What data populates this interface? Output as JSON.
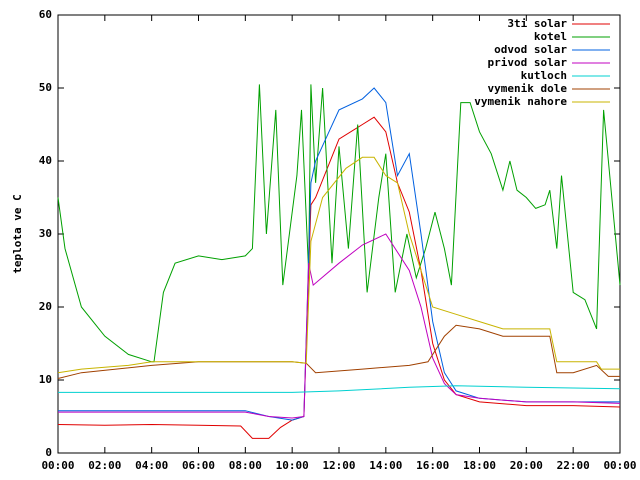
{
  "chart_data": {
    "type": "line",
    "ylabel": "teplota ve C",
    "xlim": [
      0,
      24
    ],
    "ylim": [
      0,
      60
    ],
    "yticks": [
      0,
      10,
      20,
      30,
      40,
      50,
      60
    ],
    "xticks": [
      {
        "value": 0,
        "label": "00:00"
      },
      {
        "value": 2,
        "label": "02:00"
      },
      {
        "value": 4,
        "label": "04:00"
      },
      {
        "value": 6,
        "label": "06:00"
      },
      {
        "value": 8,
        "label": "08:00"
      },
      {
        "value": 10,
        "label": "10:00"
      },
      {
        "value": 12,
        "label": "12:00"
      },
      {
        "value": 14,
        "label": "14:00"
      },
      {
        "value": 16,
        "label": "16:00"
      },
      {
        "value": 18,
        "label": "18:00"
      },
      {
        "value": 20,
        "label": "20:00"
      },
      {
        "value": 22,
        "label": "22:00"
      },
      {
        "value": 24,
        "label": "00:00"
      }
    ],
    "grid": false,
    "legend": "top-right",
    "series": [
      {
        "name": "3ti solar",
        "color": "#e00000",
        "x": [
          0,
          2,
          4,
          6,
          7.8,
          8.3,
          9,
          9.5,
          10,
          10.5,
          10.8,
          11,
          12,
          13,
          13.5,
          14,
          14.5,
          15,
          15.5,
          16,
          16.5,
          17,
          18,
          20,
          22,
          24
        ],
        "values": [
          3.9,
          3.8,
          3.9,
          3.8,
          3.7,
          2,
          2,
          3.5,
          4.5,
          5,
          34,
          35,
          43,
          45,
          46,
          44,
          37,
          33,
          25,
          15,
          10,
          8,
          7,
          6.5,
          6.5,
          6.3
        ]
      },
      {
        "name": "kotel",
        "color": "#00a000",
        "x": [
          0,
          0.3,
          1,
          2,
          3,
          4,
          4.1,
          4.5,
          5,
          6,
          7,
          8,
          8.3,
          8.6,
          8.9,
          9.3,
          9.6,
          9.8,
          10.2,
          10.4,
          10.7,
          10.8,
          11,
          11.3,
          11.7,
          12,
          12.4,
          12.8,
          13.2,
          13.7,
          14,
          14.4,
          14.9,
          15.3,
          15.7,
          16.1,
          16.5,
          16.8,
          17.2,
          17.6,
          18,
          18.5,
          19,
          19.3,
          19.6,
          20,
          20.4,
          20.8,
          21,
          21.3,
          21.5,
          22,
          22.5,
          23,
          23.3,
          24
        ],
        "values": [
          35,
          28,
          20,
          16,
          13.5,
          12.5,
          12.5,
          22,
          26,
          27,
          26.5,
          27,
          28,
          50.5,
          30,
          47,
          23,
          28,
          38,
          47,
          25,
          50.5,
          37,
          50,
          26,
          42,
          28,
          45,
          22,
          35,
          41,
          22,
          30,
          24,
          28,
          33,
          28,
          23,
          48,
          48,
          44,
          41,
          36,
          40,
          36,
          35,
          33.5,
          34,
          36,
          28,
          38,
          22,
          21,
          17,
          47,
          23
        ]
      },
      {
        "name": "odvod solar",
        "color": "#0060e0",
        "x": [
          0,
          4,
          8,
          9,
          10,
          10.5,
          10.8,
          11,
          12,
          13,
          13.5,
          14,
          14.5,
          15,
          15.5,
          16,
          16.5,
          17,
          18,
          20,
          24
        ],
        "values": [
          5.8,
          5.8,
          5.8,
          5,
          4.5,
          5,
          37,
          40,
          47,
          48.5,
          50,
          48,
          38,
          41,
          30,
          18,
          11,
          8.5,
          7.5,
          7,
          7
        ]
      },
      {
        "name": "privod solar",
        "color": "#c000c0",
        "x": [
          0,
          4,
          8,
          9,
          10,
          10.5,
          10.7,
          10.9,
          12,
          13,
          14,
          15,
          15.5,
          16,
          16.5,
          17,
          18,
          20,
          22,
          24
        ],
        "values": [
          5.6,
          5.6,
          5.6,
          5,
          4.8,
          5,
          26,
          23,
          26,
          28.5,
          30,
          25,
          20,
          13,
          9.5,
          8,
          7.5,
          7,
          7,
          6.8
        ]
      },
      {
        "name": "kutloch",
        "color": "#00d0d0",
        "x": [
          0,
          5,
          10,
          12,
          15,
          17,
          20,
          24
        ],
        "values": [
          8.3,
          8.3,
          8.3,
          8.5,
          9,
          9.2,
          9,
          8.8
        ]
      },
      {
        "name": "vymenik dole",
        "color": "#a04000",
        "x": [
          0,
          1,
          4,
          6,
          10,
          10.6,
          11,
          13,
          15,
          15.8,
          16.5,
          17,
          18,
          19,
          21,
          21.3,
          22,
          23,
          23.5,
          24
        ],
        "values": [
          10.2,
          11,
          12,
          12.5,
          12.5,
          12.3,
          11,
          11.5,
          12,
          12.5,
          16,
          17.5,
          17,
          16,
          16,
          11,
          11,
          12,
          10.5,
          10.5
        ]
      },
      {
        "name": "vymenik nahore",
        "color": "#c8b400",
        "x": [
          0,
          1,
          3,
          4,
          10,
          10.6,
          10.8,
          11.3,
          12.3,
          13,
          13.5,
          14,
          14.5,
          15,
          15.5,
          16,
          17,
          18,
          19,
          21,
          21.3,
          23,
          23.2,
          24
        ],
        "values": [
          11,
          11.5,
          12,
          12.5,
          12.5,
          12.3,
          29,
          35,
          39,
          40.5,
          40.5,
          38,
          37,
          30,
          25,
          20,
          19,
          18,
          17,
          17,
          12.5,
          12.5,
          11.5,
          11.5
        ]
      }
    ]
  }
}
